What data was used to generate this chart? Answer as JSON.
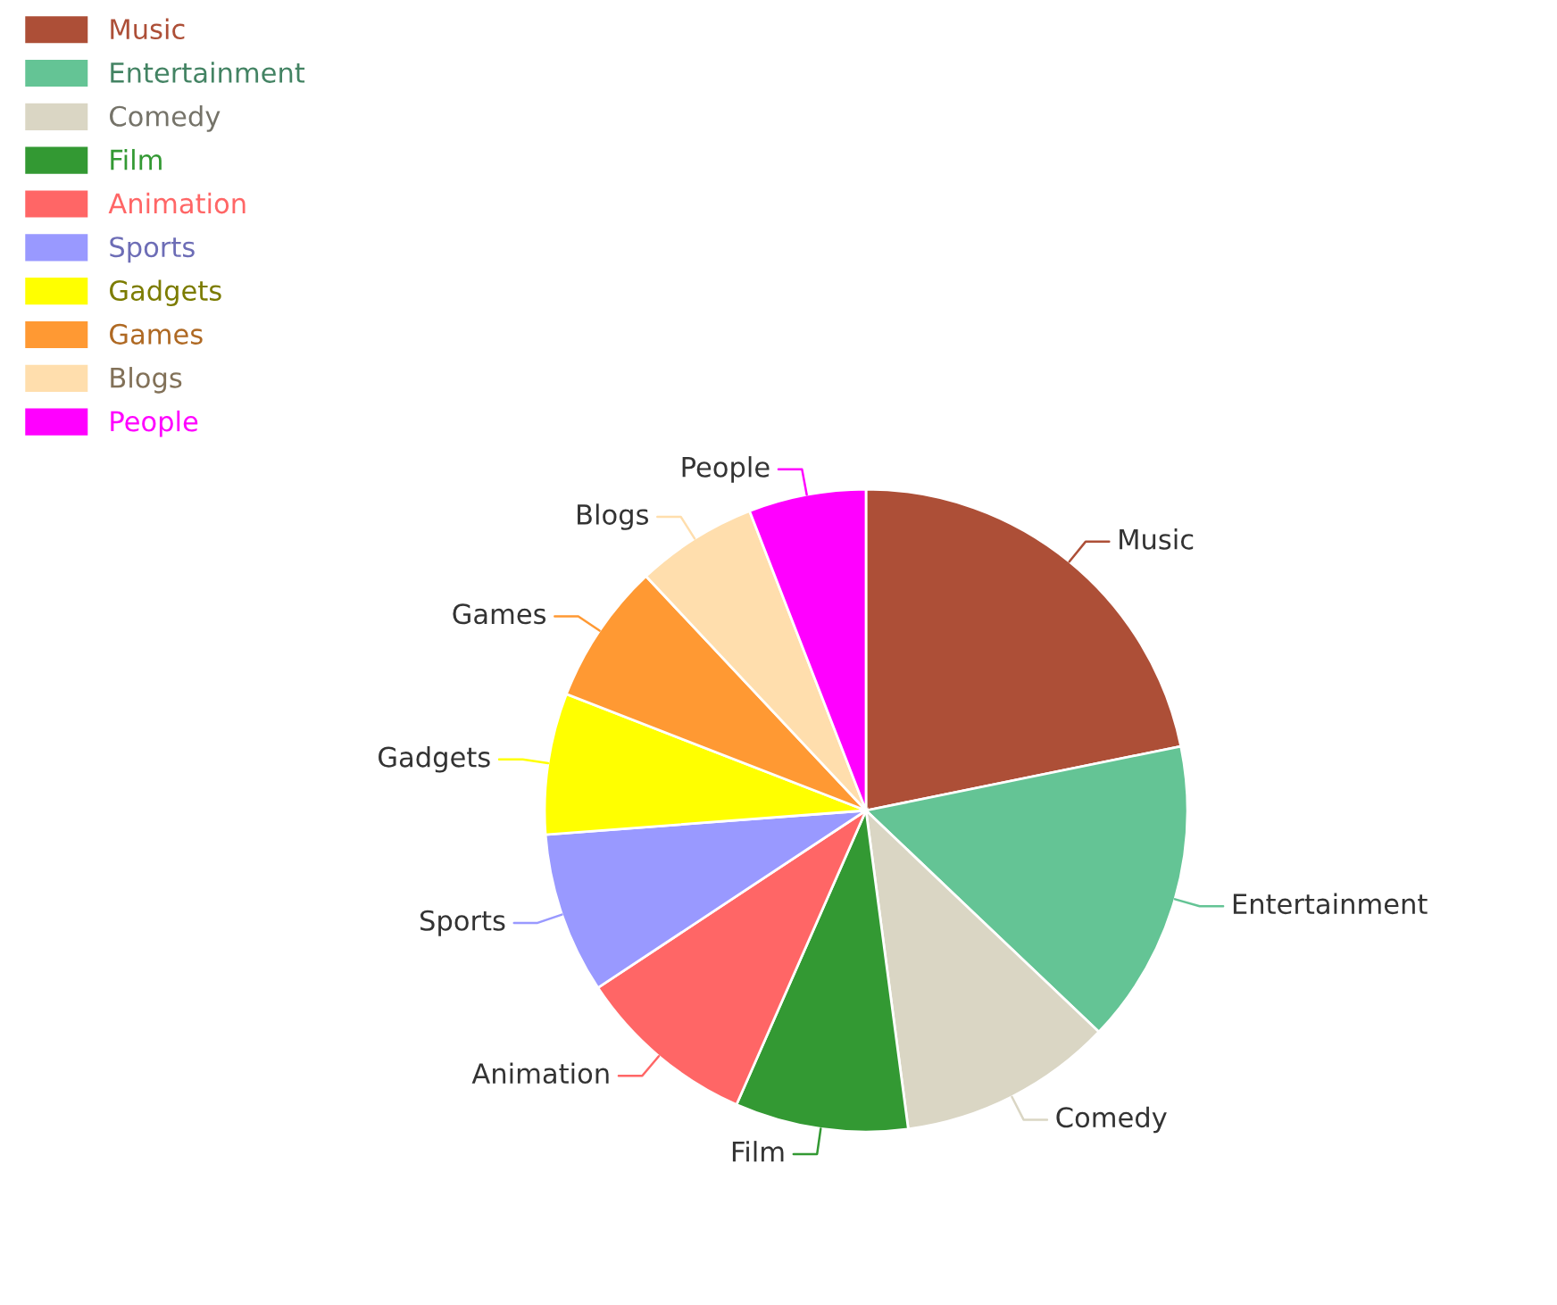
{
  "chart_data": {
    "type": "pie",
    "categories": [
      "Music",
      "Entertainment",
      "Comedy",
      "Film",
      "Animation",
      "Sports",
      "Gadgets",
      "Games",
      "Blogs",
      "People"
    ],
    "values": [
      21.8,
      15.3,
      10.8,
      8.7,
      9.1,
      8.1,
      7.1,
      7.1,
      6.1,
      5.9
    ],
    "colors": [
      "#ad4f37",
      "#64c495",
      "#dad6c4",
      "#339933",
      "#ff6666",
      "#9999ff",
      "#ffff00",
      "#ff9933",
      "#ffdead",
      "#ff00ff"
    ],
    "legend": "top left"
  }
}
